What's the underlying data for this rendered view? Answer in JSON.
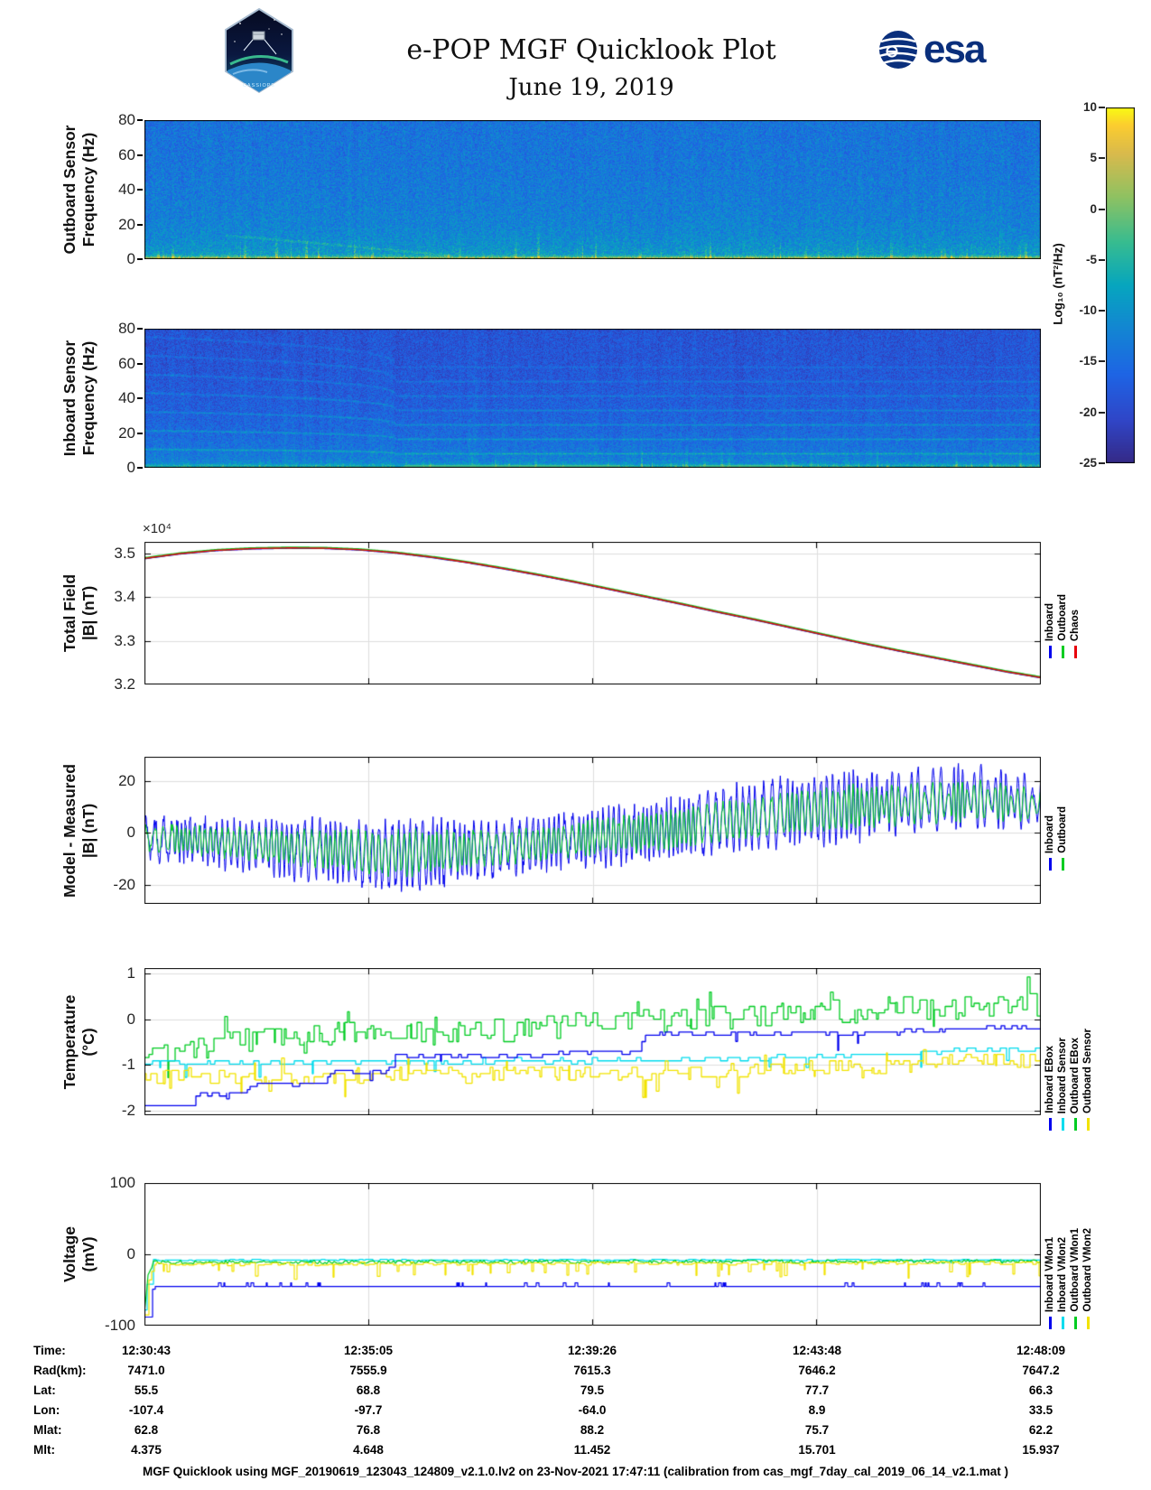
{
  "header": {
    "title": "e-POP MGF Quicklook Plot",
    "subtitle": "June 19, 2019",
    "esa": "esa",
    "patch_label": "CASSIOPE"
  },
  "footer": "MGF Quicklook using MGF_20190619_123043_124809_v2.1.0.lv2 on 23-Nov-2021 17:47:11 (calibration from cas_mgf_7day_cal_2019_06_14_v2.1.mat )",
  "table": {
    "rows": [
      {
        "label": "Time:",
        "values": [
          "12:30:43",
          "12:35:05",
          "12:39:26",
          "12:43:48",
          "12:48:09"
        ]
      },
      {
        "label": "Rad(km):",
        "values": [
          "7471.0",
          "7555.9",
          "7615.3",
          "7646.2",
          "7647.2"
        ]
      },
      {
        "label": "Lat:",
        "values": [
          "55.5",
          "68.8",
          "79.5",
          "77.7",
          "66.3"
        ]
      },
      {
        "label": "Lon:",
        "values": [
          "-107.4",
          "-97.7",
          "-64.0",
          "8.9",
          "33.5"
        ]
      },
      {
        "label": "Mlat:",
        "values": [
          "62.8",
          "76.8",
          "88.2",
          "75.7",
          "62.2"
        ]
      },
      {
        "label": "Mlt:",
        "values": [
          "4.375",
          "4.648",
          "11.452",
          "15.701",
          "15.937"
        ]
      }
    ]
  },
  "chart_data": {
    "time_axis": {
      "xticks": [
        "12:30:43",
        "12:35:05",
        "12:39:26",
        "12:43:48",
        "12:48:09"
      ]
    },
    "colorbar": {
      "label": "Log₁₀ (nT²/Hz)",
      "ticks": [
        10,
        5,
        0,
        -5,
        -10,
        -15,
        -20,
        -25
      ],
      "range": [
        10,
        -25
      ],
      "colormap": "parula"
    },
    "panels": [
      {
        "id": "outboard-spectrogram",
        "type": "heatmap",
        "ylabel": [
          "Outboard Sensor",
          "Frequency (Hz)"
        ],
        "ylim": [
          0,
          80
        ],
        "yticks": [
          0,
          20,
          40,
          60,
          80
        ],
        "seed": 13,
        "noise": 4.2,
        "col_noise": 1.2,
        "profile": [
          [
            0,
            5.5
          ],
          [
            0.8,
            4.2
          ],
          [
            1.8,
            -4
          ],
          [
            3,
            -8.8
          ],
          [
            5,
            -9.6
          ],
          [
            8,
            -10.4
          ],
          [
            12,
            -11.2
          ],
          [
            20,
            -12.2
          ],
          [
            30,
            -12.8
          ],
          [
            50,
            -13.6
          ],
          [
            80,
            -14.3
          ]
        ],
        "spikes": {
          "count": 90,
          "h_max": 22,
          "h_pow": 2.8,
          "i_min": 4,
          "i_max": 9
        },
        "diag": [
          [
            0.09,
            14
          ],
          [
            0.34,
            2.5
          ]
        ]
      },
      {
        "id": "inboard-spectrogram",
        "type": "heatmap",
        "ylabel": [
          "Inboard Sensor",
          "Frequency (Hz)"
        ],
        "ylim": [
          0,
          80
        ],
        "yticks": [
          0,
          20,
          40,
          60,
          80
        ],
        "seed": 137,
        "noise": 3.6,
        "col_noise": 1.6,
        "profile": [
          [
            0,
            -4.3
          ],
          [
            0.7,
            -4.8
          ],
          [
            1.6,
            -6.5
          ],
          [
            3,
            -11.2
          ],
          [
            5,
            -12.6
          ],
          [
            8,
            -13.4
          ],
          [
            12,
            -14.2
          ],
          [
            18,
            -15.2
          ],
          [
            25,
            -16
          ],
          [
            35,
            -17
          ],
          [
            45,
            -17.6
          ],
          [
            60,
            -18.3
          ],
          [
            80,
            -18.6
          ]
        ],
        "spikes": {
          "count": 75,
          "h_max": 15,
          "h_pow": 2.2,
          "i_min": 3.5,
          "i_max": 7.5,
          "t_min": 0.28
        },
        "lines": {
          "freqs": [
            8.3,
            16.6,
            24.9,
            33.2,
            41.5,
            49.8,
            58.1
          ],
          "gains": [
            6,
            5.5,
            5,
            4.5,
            4,
            3.5,
            3
          ],
          "bend_t": 0.28,
          "bend_scale": 0.3,
          "bend_pow": 0.35
        },
        "yellow_ranges": [
          [
            0.29,
            0.53
          ],
          [
            0.62,
            0.73
          ]
        ]
      },
      {
        "id": "total-field",
        "type": "line",
        "ylabel": [
          "Total Field",
          "|B| (nT)"
        ],
        "offset_label": "×10⁴",
        "ylim": [
          32000,
          35270
        ],
        "yticks": [
          32000,
          33000,
          34000,
          35000
        ],
        "ytick_labels": [
          "3.2",
          "3.3",
          "3.4",
          "3.5"
        ],
        "legend": [
          {
            "label": "Inboard",
            "color": "#0000ee"
          },
          {
            "label": "Outboard",
            "color": "#00cc22"
          },
          {
            "label": "Chaos",
            "color": "#e8000b"
          }
        ],
        "keyframes": [
          [
            0,
            34890
          ],
          [
            0.04,
            35000
          ],
          [
            0.08,
            35075
          ],
          [
            0.12,
            35115
          ],
          [
            0.16,
            35130
          ],
          [
            0.2,
            35125
          ],
          [
            0.24,
            35090
          ],
          [
            0.28,
            35020
          ],
          [
            0.32,
            34920
          ],
          [
            0.36,
            34800
          ],
          [
            0.4,
            34660
          ],
          [
            0.44,
            34510
          ],
          [
            0.48,
            34350
          ],
          [
            0.52,
            34180
          ],
          [
            0.56,
            34010
          ],
          [
            0.6,
            33840
          ],
          [
            0.64,
            33660
          ],
          [
            0.68,
            33490
          ],
          [
            0.72,
            33310
          ],
          [
            0.76,
            33130
          ],
          [
            0.8,
            32950
          ],
          [
            0.84,
            32780
          ],
          [
            0.88,
            32620
          ],
          [
            0.92,
            32460
          ],
          [
            0.96,
            32300
          ],
          [
            1,
            32160
          ]
        ]
      },
      {
        "id": "model-minus-measured",
        "type": "line",
        "ylabel": [
          "Model - Measured",
          "|B| (nT)"
        ],
        "ylim": [
          -27.5,
          29.5
        ],
        "yticks": [
          -20,
          0,
          20
        ],
        "legend": [
          {
            "label": "Inboard",
            "color": "#0000ee"
          },
          {
            "label": "Outboard",
            "color": "#00cc22"
          }
        ],
        "mean_keyframes": [
          [
            0,
            -2
          ],
          [
            0.06,
            -3
          ],
          [
            0.12,
            -5
          ],
          [
            0.2,
            -7
          ],
          [
            0.27,
            -9
          ],
          [
            0.33,
            -8
          ],
          [
            0.4,
            -6
          ],
          [
            0.47,
            -3
          ],
          [
            0.53,
            -1
          ],
          [
            0.6,
            2
          ],
          [
            0.67,
            6
          ],
          [
            0.74,
            9
          ],
          [
            0.8,
            11
          ],
          [
            0.87,
            13
          ],
          [
            0.93,
            14
          ],
          [
            1,
            12
          ]
        ],
        "amp_keyframes": [
          [
            0,
            6
          ],
          [
            0.1,
            7
          ],
          [
            0.2,
            9
          ],
          [
            0.3,
            11
          ],
          [
            0.38,
            8
          ],
          [
            0.5,
            8
          ],
          [
            0.6,
            9
          ],
          [
            0.7,
            10
          ],
          [
            0.8,
            11
          ],
          [
            0.9,
            12
          ],
          [
            1,
            9
          ]
        ]
      },
      {
        "id": "temperature",
        "type": "line",
        "ylabel": [
          "Temperature",
          "(°C)"
        ],
        "ylim": [
          -2.1,
          1.12
        ],
        "yticks": [
          -2,
          -1,
          0,
          1
        ],
        "legend": [
          {
            "label": "Inboard EBox",
            "color": "#0000ee"
          },
          {
            "label": "Inboard Sensor",
            "color": "#00dcee"
          },
          {
            "label": "Outboard EBox",
            "color": "#00cc22"
          },
          {
            "label": "Outboard Sensor",
            "color": "#f2e300"
          }
        ],
        "series": [
          {
            "name": "Inboard EBox",
            "color": "#0000ee",
            "seed": 11,
            "jitter": 0.04,
            "quant": 0.07,
            "hold_min": 3,
            "hold_var": 6,
            "spike_p": 0.04,
            "spike_amp": 0.28,
            "spike_sign": -1,
            "keyframes": [
              [
                0,
                -1.9
              ],
              [
                0.05,
                -1.88
              ],
              [
                0.06,
                -1.65
              ],
              [
                0.11,
                -1.62
              ],
              [
                0.12,
                -1.42
              ],
              [
                0.2,
                -1.4
              ],
              [
                0.21,
                -1.15
              ],
              [
                0.27,
                -1.12
              ],
              [
                0.28,
                -0.82
              ],
              [
                0.45,
                -0.8
              ],
              [
                0.46,
                -0.72
              ],
              [
                0.55,
                -0.7
              ],
              [
                0.56,
                -0.32
              ],
              [
                0.75,
                -0.3
              ],
              [
                0.85,
                -0.28
              ],
              [
                1,
                -0.15
              ]
            ]
          },
          {
            "name": "Inboard Sensor",
            "color": "#00dcee",
            "seed": 22,
            "jitter": 0.05,
            "quant": 0.07,
            "hold_min": 3,
            "hold_var": 7,
            "spike_p": 0.05,
            "spike_amp": 0.3,
            "spike_sign": -1,
            "keyframes": [
              [
                0,
                -0.95
              ],
              [
                0.3,
                -0.93
              ],
              [
                0.6,
                -0.88
              ],
              [
                0.8,
                -0.8
              ],
              [
                0.9,
                -0.7
              ],
              [
                1,
                -0.62
              ]
            ]
          },
          {
            "name": "Outboard EBox",
            "color": "#00cc22",
            "seed": 33,
            "jitter": 0.26,
            "quant": 0.07,
            "hold_min": 2,
            "hold_var": 4,
            "spike_p": 0.1,
            "spike_amp": 0.32,
            "spike_sign": 0,
            "keyframes": [
              [
                0,
                -0.85
              ],
              [
                0.03,
                -0.7
              ],
              [
                0.08,
                -0.55
              ],
              [
                0.15,
                -0.4
              ],
              [
                0.25,
                -0.3
              ],
              [
                0.35,
                -0.3
              ],
              [
                0.45,
                -0.15
              ],
              [
                0.55,
                -0.05
              ],
              [
                0.65,
                0.05
              ],
              [
                0.75,
                0.15
              ],
              [
                0.85,
                0.25
              ],
              [
                1,
                0.3
              ]
            ]
          },
          {
            "name": "Outboard Sensor",
            "color": "#f2e300",
            "seed": 44,
            "jitter": 0.16,
            "quant": 0.07,
            "hold_min": 2,
            "hold_var": 5,
            "spike_p": 0.12,
            "spike_amp": 0.3,
            "spike_sign": 0,
            "keyframes": [
              [
                0,
                -1.2
              ],
              [
                0.1,
                -1.3
              ],
              [
                0.25,
                -1.25
              ],
              [
                0.4,
                -1.2
              ],
              [
                0.55,
                -1.18
              ],
              [
                0.7,
                -1.1
              ],
              [
                0.85,
                -1.0
              ],
              [
                1,
                -0.85
              ]
            ]
          }
        ]
      },
      {
        "id": "voltage",
        "type": "line",
        "ylabel": [
          "Voltage",
          "(mV)"
        ],
        "ylim": [
          -100,
          100
        ],
        "yticks": [
          -100,
          0,
          100
        ],
        "legend": [
          {
            "label": "Inboard VMon1",
            "color": "#0000ee"
          },
          {
            "label": "Inboard VMon2",
            "color": "#00dcee"
          },
          {
            "label": "Outboard VMon1",
            "color": "#00cc22"
          },
          {
            "label": "Outboard VMon2",
            "color": "#f2e300"
          }
        ],
        "series": [
          {
            "name": "Inboard VMon1",
            "color": "#0000ee",
            "seed": 55,
            "jitter": 0.5,
            "quant": 1,
            "hold_min": 3,
            "hold_var": 6,
            "blip": 5,
            "bursts": [
              [
                0.07,
                0.2
              ],
              [
                0.3,
                0.52
              ],
              [
                0.56,
                0.66
              ],
              [
                0.76,
                0.97
              ]
            ],
            "keyframes": [
              [
                0,
                -88
              ],
              [
                0.004,
                -70
              ],
              [
                0.01,
                -45
              ],
              [
                1,
                -45
              ]
            ]
          },
          {
            "name": "Inboard VMon2",
            "color": "#00dcee",
            "seed": 66,
            "jitter": 0.9,
            "quant": 1,
            "hold_min": 3,
            "hold_var": 6,
            "spike_p": 0.03,
            "spike_amp": 3,
            "spike_sign": -1,
            "keyframes": [
              [
                0,
                -78
              ],
              [
                0.004,
                -30
              ],
              [
                0.01,
                -8
              ],
              [
                1,
                -8
              ]
            ]
          },
          {
            "name": "Outboard VMon1",
            "color": "#00cc22",
            "seed": 77,
            "noise": 2.6,
            "keyframes": [
              [
                0,
                -80
              ],
              [
                0.004,
                -30
              ],
              [
                0.01,
                -11
              ],
              [
                1,
                -10
              ]
            ]
          },
          {
            "name": "Outboard VMon2",
            "color": "#f2e300",
            "seed": 88,
            "jitter": 2.2,
            "quant": 1,
            "hold_min": 2,
            "hold_var": 4,
            "spike_p": 0.12,
            "spike_amp": 16,
            "spike_sign": -1,
            "keyframes": [
              [
                0,
                -85
              ],
              [
                0.004,
                -40
              ],
              [
                0.01,
                -14
              ],
              [
                1,
                -12
              ]
            ]
          }
        ]
      }
    ]
  }
}
